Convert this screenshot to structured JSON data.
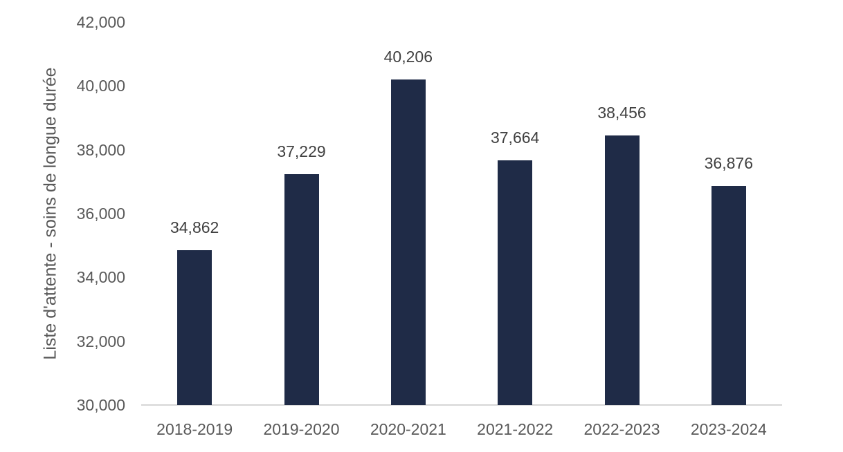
{
  "chart_data": {
    "type": "bar",
    "title": "",
    "categories": [
      "2018-2019",
      "2019-2020",
      "2020-2021",
      "2021-2022",
      "2022-2023",
      "2023-2024"
    ],
    "values": [
      34862,
      37229,
      40206,
      37664,
      38456,
      36876
    ],
    "value_labels": [
      "34,862",
      "37,229",
      "40,206",
      "37,664",
      "38,456",
      "36,876"
    ],
    "xlabel": "",
    "ylabel": "Liste d'attente - soins de longue durée",
    "ylim": [
      30000,
      42000
    ],
    "ytick_step": 2000,
    "ytick_labels": [
      "30,000",
      "32,000",
      "34,000",
      "36,000",
      "38,000",
      "40,000",
      "42,000"
    ],
    "grid": false,
    "legend": "none",
    "colors": {
      "bar": "#1F2B47",
      "axis_line": "#D6D6D6",
      "axis_text": "#595959",
      "data_label": "#404040"
    }
  }
}
